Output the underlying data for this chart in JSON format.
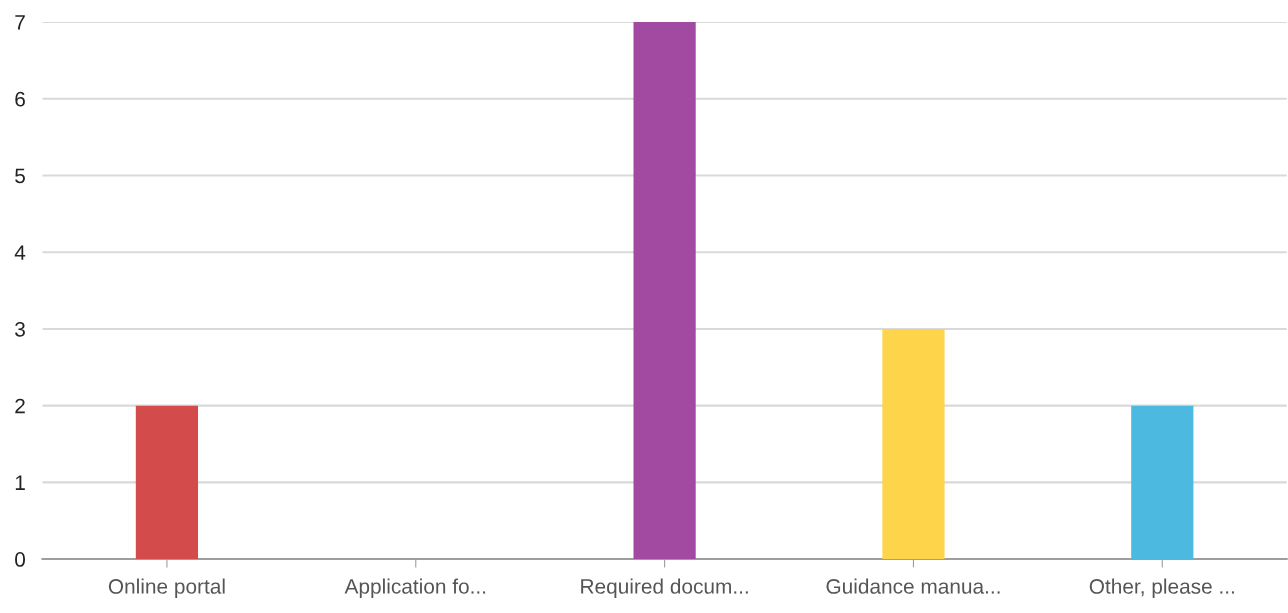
{
  "chart_data": {
    "type": "bar",
    "categories": [
      "Online portal",
      "Application fo...",
      "Required docum...",
      "Guidance manua...",
      "Other, please ..."
    ],
    "values": [
      2,
      0,
      7,
      3,
      2
    ],
    "colors": [
      "#d44b4b",
      "#4a7fd4",
      "#a24aa2",
      "#fed44b",
      "#4bb9e0"
    ],
    "ylim": [
      0,
      7
    ],
    "yticks": [
      0,
      1,
      2,
      3,
      4,
      5,
      6,
      7
    ],
    "grid": "y",
    "legend": false
  }
}
